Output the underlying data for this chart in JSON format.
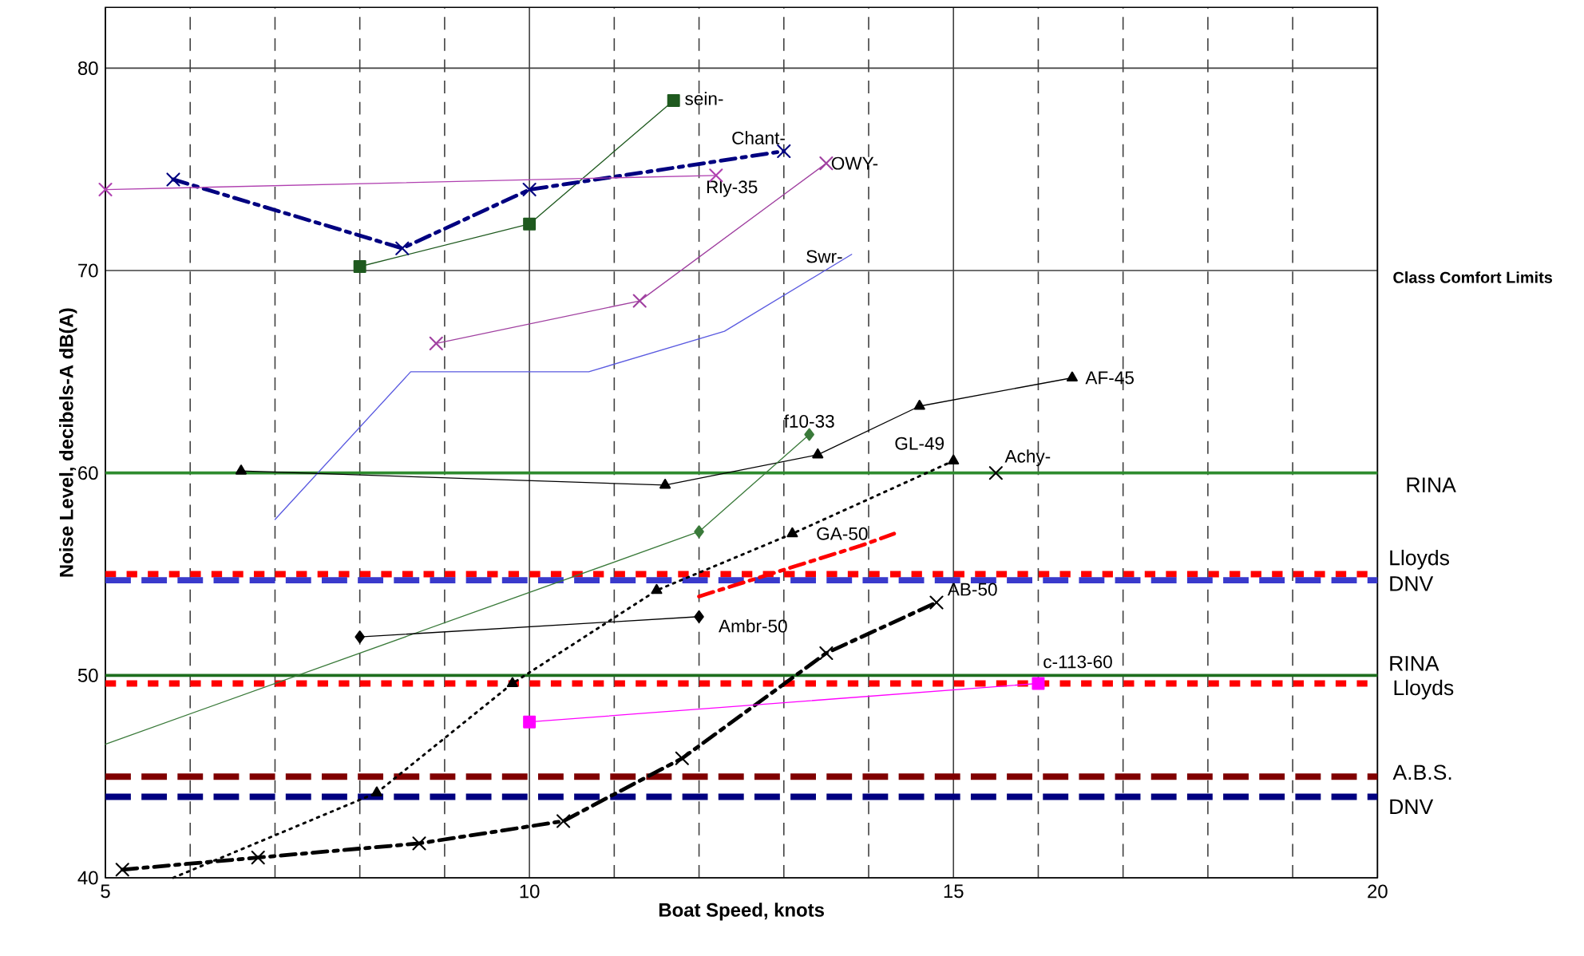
{
  "chart_data": {
    "type": "line",
    "xlabel": "Boat Speed, knots",
    "ylabel": "Noise Level, decibels-A         dB(A)",
    "xlim": [
      5,
      20
    ],
    "ylim": [
      40,
      83
    ],
    "xticks": [
      5,
      10,
      15,
      20
    ],
    "yticks": [
      40,
      50,
      60,
      70,
      80
    ],
    "grid": true,
    "annotations": [
      "Class Comfort Limits"
    ],
    "ref_lines": [
      {
        "axis": "y",
        "value": 60,
        "label": "RINA",
        "color": "#2e8b2e",
        "line_style": "solid"
      },
      {
        "axis": "y",
        "value": 55,
        "label": "Lloyds",
        "color": "#ff0000",
        "line_style": "dotted"
      },
      {
        "axis": "y",
        "value": 54.7,
        "label": "DNV",
        "color": "#3a3acc",
        "line_style": "dashed"
      },
      {
        "axis": "y",
        "value": 50,
        "label": "RINA",
        "color": "#1e6e1e",
        "line_style": "solid"
      },
      {
        "axis": "y",
        "value": 49.6,
        "label": "Lloyds",
        "color": "#ff0000",
        "line_style": "dotted"
      },
      {
        "axis": "y",
        "value": 45,
        "label": "A.B.S.",
        "color": "#800000",
        "line_style": "dashed"
      },
      {
        "axis": "y",
        "value": 44,
        "label": "DNV",
        "color": "#000080",
        "line_style": "dashed"
      }
    ],
    "series": [
      {
        "name": "sein-",
        "color": "#1f5a1f",
        "marker": "square",
        "line_style": "solid",
        "x": [
          8,
          10,
          11.7
        ],
        "values": [
          70.2,
          72.3,
          78.4
        ]
      },
      {
        "name": "Chant-",
        "color": "#000080",
        "marker": "cross",
        "line_style": "dashed",
        "x": [
          5.8,
          8.5,
          10,
          13
        ],
        "values": [
          74.5,
          71.1,
          74,
          75.9
        ]
      },
      {
        "name": "Rly-35",
        "color": "#b040b0",
        "marker": "cross",
        "line_style": "solid",
        "x": [
          5,
          12.2
        ],
        "values": [
          74,
          74.7
        ]
      },
      {
        "name": "OWY-",
        "color": "#a040a0",
        "marker": "cross",
        "line_style": "solid",
        "x": [
          8.9,
          11.3,
          13.5
        ],
        "values": [
          66.4,
          68.5,
          75.3
        ]
      },
      {
        "name": "Swr-",
        "color": "#5a5ae0",
        "marker": "none",
        "line_style": "solid",
        "x": [
          7,
          8.6,
          10.7,
          12.3,
          13.8
        ],
        "values": [
          57.7,
          65,
          65,
          67,
          70.8
        ]
      },
      {
        "name": "AF-45",
        "color": "#000000",
        "marker": "triangle",
        "line_style": "solid",
        "x": [
          6.6,
          11.6,
          13.4,
          14.6,
          16.4
        ],
        "values": [
          60.1,
          59.4,
          60.9,
          63.3,
          64.7
        ]
      },
      {
        "name": "f10-33",
        "color": "#3a7a3a",
        "marker": "diamond",
        "line_style": "solid",
        "x": [
          12,
          13.3
        ],
        "values": [
          57.1,
          61.9
        ]
      },
      {
        "name": "GL-49",
        "color": "#000000",
        "marker": "triangle",
        "line_style": "dotted",
        "x": [
          8.2,
          9.8,
          11.5,
          13.1,
          15
        ],
        "values": [
          44.2,
          49.6,
          54.2,
          57,
          60.6
        ]
      },
      {
        "name": "Achy-",
        "color": "#000000",
        "marker": "cross",
        "line_style": "solid",
        "x": [
          15.5
        ],
        "values": [
          60
        ]
      },
      {
        "name": "GA-50",
        "color": "#ff0000",
        "marker": "none",
        "line_style": "dashed",
        "x": [
          12,
          13.9,
          14.3
        ],
        "values": [
          53.9,
          56.4,
          57
        ]
      },
      {
        "name": "Ambr-50",
        "color": "#000000",
        "marker": "diamond",
        "line_style": "solid",
        "x": [
          8,
          12
        ],
        "values": [
          51.9,
          52.9
        ]
      },
      {
        "name": "AB-50",
        "color": "#000000",
        "marker": "cross",
        "line_style": "dashed",
        "x": [
          5.2,
          6.8,
          8.7,
          10.4,
          11.8,
          13.5,
          14.8
        ],
        "values": [
          40.4,
          41,
          41.7,
          42.8,
          45.9,
          51.1,
          53.6
        ]
      },
      {
        "name": "c-113-60",
        "color": "#ff00ff",
        "marker": "square",
        "line_style": "solid",
        "x": [
          10,
          16
        ],
        "values": [
          47.7,
          49.6
        ]
      },
      {
        "color": "#3a7a3a",
        "marker": "none",
        "line_style": "solid",
        "x": [
          5,
          12
        ],
        "values": [
          46.6,
          57.1
        ]
      },
      {
        "color": "#000000",
        "marker": "none",
        "line_style": "dotted",
        "x": [
          5.8,
          8.2
        ],
        "values": [
          40,
          44.2
        ]
      }
    ]
  }
}
